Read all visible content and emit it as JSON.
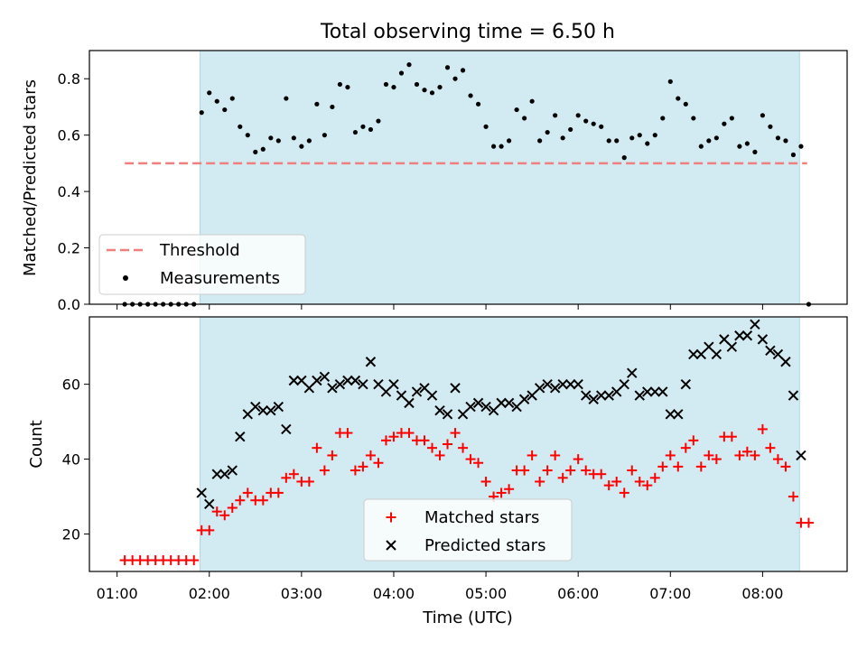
{
  "title": "Total observing time = 6.50 h",
  "colors": {
    "observing_window": "#add8e6",
    "threshold": "#f08080",
    "measurements": "#000000",
    "matched": "#ff0000",
    "predicted": "#000000"
  },
  "chart_data": [
    {
      "type": "scatter",
      "panel": "top",
      "ylabel": "Matched/Predicted stars",
      "ylim": [
        0,
        0.9
      ],
      "yticks": [
        "0.0",
        "0.2",
        "0.4",
        "0.6",
        "0.8"
      ],
      "xlim": [
        "00:42",
        "08:55"
      ],
      "xticks": [
        "01:00",
        "02:00",
        "03:00",
        "04:00",
        "05:00",
        "06:00",
        "07:00",
        "08:00"
      ],
      "legend_position": "lower-left",
      "observing_window": [
        "01:54",
        "08:24"
      ],
      "threshold": {
        "name": "Threshold",
        "y": 0.5,
        "x": [
          "01:05",
          "08:29"
        ]
      },
      "series": [
        {
          "name": "Measurements",
          "points": [
            [
              "01:05",
              0
            ],
            [
              "01:10",
              0
            ],
            [
              "01:15",
              0
            ],
            [
              "01:20",
              0
            ],
            [
              "01:25",
              0
            ],
            [
              "01:30",
              0
            ],
            [
              "01:35",
              0
            ],
            [
              "01:40",
              0
            ],
            [
              "01:45",
              0
            ],
            [
              "01:50",
              0
            ],
            [
              "01:55",
              0.68
            ],
            [
              "02:00",
              0.75
            ],
            [
              "02:05",
              0.72
            ],
            [
              "02:10",
              0.69
            ],
            [
              "02:15",
              0.73
            ],
            [
              "02:20",
              0.63
            ],
            [
              "02:25",
              0.6
            ],
            [
              "02:30",
              0.54
            ],
            [
              "02:35",
              0.55
            ],
            [
              "02:40",
              0.59
            ],
            [
              "02:45",
              0.58
            ],
            [
              "02:50",
              0.73
            ],
            [
              "02:55",
              0.59
            ],
            [
              "03:00",
              0.56
            ],
            [
              "03:05",
              0.58
            ],
            [
              "03:10",
              0.71
            ],
            [
              "03:15",
              0.6
            ],
            [
              "03:20",
              0.7
            ],
            [
              "03:25",
              0.78
            ],
            [
              "03:30",
              0.77
            ],
            [
              "03:35",
              0.61
            ],
            [
              "03:40",
              0.63
            ],
            [
              "03:45",
              0.62
            ],
            [
              "03:50",
              0.65
            ],
            [
              "03:55",
              0.78
            ],
            [
              "04:00",
              0.77
            ],
            [
              "04:05",
              0.82
            ],
            [
              "04:10",
              0.85
            ],
            [
              "04:15",
              0.78
            ],
            [
              "04:20",
              0.76
            ],
            [
              "04:25",
              0.75
            ],
            [
              "04:30",
              0.77
            ],
            [
              "04:35",
              0.84
            ],
            [
              "04:40",
              0.8
            ],
            [
              "04:45",
              0.83
            ],
            [
              "04:50",
              0.74
            ],
            [
              "04:55",
              0.71
            ],
            [
              "05:00",
              0.63
            ],
            [
              "05:05",
              0.56
            ],
            [
              "05:10",
              0.56
            ],
            [
              "05:15",
              0.58
            ],
            [
              "05:20",
              0.69
            ],
            [
              "05:25",
              0.66
            ],
            [
              "05:30",
              0.72
            ],
            [
              "05:35",
              0.58
            ],
            [
              "05:40",
              0.61
            ],
            [
              "05:45",
              0.67
            ],
            [
              "05:50",
              0.59
            ],
            [
              "05:55",
              0.62
            ],
            [
              "06:00",
              0.67
            ],
            [
              "06:05",
              0.65
            ],
            [
              "06:10",
              0.64
            ],
            [
              "06:15",
              0.63
            ],
            [
              "06:20",
              0.58
            ],
            [
              "06:25",
              0.58
            ],
            [
              "06:30",
              0.52
            ],
            [
              "06:35",
              0.59
            ],
            [
              "06:40",
              0.6
            ],
            [
              "06:45",
              0.57
            ],
            [
              "06:50",
              0.6
            ],
            [
              "06:55",
              0.66
            ],
            [
              "07:00",
              0.79
            ],
            [
              "07:05",
              0.73
            ],
            [
              "07:10",
              0.71
            ],
            [
              "07:15",
              0.66
            ],
            [
              "07:20",
              0.56
            ],
            [
              "07:25",
              0.58
            ],
            [
              "07:30",
              0.59
            ],
            [
              "07:35",
              0.64
            ],
            [
              "07:40",
              0.66
            ],
            [
              "07:45",
              0.56
            ],
            [
              "07:50",
              0.57
            ],
            [
              "07:55",
              0.54
            ],
            [
              "08:00",
              0.67
            ],
            [
              "08:05",
              0.63
            ],
            [
              "08:10",
              0.59
            ],
            [
              "08:15",
              0.58
            ],
            [
              "08:20",
              0.53
            ],
            [
              "08:25",
              0.56
            ],
            [
              "08:30",
              0
            ]
          ]
        }
      ]
    },
    {
      "type": "scatter",
      "panel": "bottom",
      "xlabel": "Time (UTC)",
      "ylabel": "Count",
      "ylim": [
        10,
        78
      ],
      "yticks": [
        "20",
        "40",
        "60"
      ],
      "xlim": [
        "00:42",
        "08:55"
      ],
      "xticks": [
        "01:00",
        "02:00",
        "03:00",
        "04:00",
        "05:00",
        "06:00",
        "07:00",
        "08:00"
      ],
      "legend_position": "lower-center",
      "observing_window": [
        "01:54",
        "08:24"
      ],
      "series": [
        {
          "name": "Matched stars",
          "points": [
            [
              "01:05",
              13
            ],
            [
              "01:10",
              13
            ],
            [
              "01:15",
              13
            ],
            [
              "01:20",
              13
            ],
            [
              "01:25",
              13
            ],
            [
              "01:30",
              13
            ],
            [
              "01:35",
              13
            ],
            [
              "01:40",
              13
            ],
            [
              "01:45",
              13
            ],
            [
              "01:50",
              13
            ],
            [
              "01:55",
              21
            ],
            [
              "02:00",
              21
            ],
            [
              "02:05",
              26
            ],
            [
              "02:10",
              25
            ],
            [
              "02:15",
              27
            ],
            [
              "02:20",
              29
            ],
            [
              "02:25",
              31
            ],
            [
              "02:30",
              29
            ],
            [
              "02:35",
              29
            ],
            [
              "02:40",
              31
            ],
            [
              "02:45",
              31
            ],
            [
              "02:50",
              35
            ],
            [
              "02:55",
              36
            ],
            [
              "03:00",
              34
            ],
            [
              "03:05",
              34
            ],
            [
              "03:10",
              43
            ],
            [
              "03:15",
              37
            ],
            [
              "03:20",
              41
            ],
            [
              "03:25",
              47
            ],
            [
              "03:30",
              47
            ],
            [
              "03:35",
              37
            ],
            [
              "03:40",
              38
            ],
            [
              "03:45",
              41
            ],
            [
              "03:50",
              39
            ],
            [
              "03:55",
              45
            ],
            [
              "04:00",
              46
            ],
            [
              "04:05",
              47
            ],
            [
              "04:10",
              47
            ],
            [
              "04:15",
              45
            ],
            [
              "04:20",
              45
            ],
            [
              "04:25",
              43
            ],
            [
              "04:30",
              41
            ],
            [
              "04:35",
              44
            ],
            [
              "04:40",
              47
            ],
            [
              "04:45",
              43
            ],
            [
              "04:50",
              40
            ],
            [
              "04:55",
              39
            ],
            [
              "05:00",
              34
            ],
            [
              "05:05",
              30
            ],
            [
              "05:10",
              31
            ],
            [
              "05:15",
              32
            ],
            [
              "05:20",
              37
            ],
            [
              "05:25",
              37
            ],
            [
              "05:30",
              41
            ],
            [
              "05:35",
              34
            ],
            [
              "05:40",
              37
            ],
            [
              "05:45",
              41
            ],
            [
              "05:50",
              35
            ],
            [
              "05:55",
              37
            ],
            [
              "06:00",
              40
            ],
            [
              "06:05",
              37
            ],
            [
              "06:10",
              36
            ],
            [
              "06:15",
              36
            ],
            [
              "06:20",
              33
            ],
            [
              "06:25",
              34
            ],
            [
              "06:30",
              31
            ],
            [
              "06:35",
              37
            ],
            [
              "06:40",
              34
            ],
            [
              "06:45",
              33
            ],
            [
              "06:50",
              35
            ],
            [
              "06:55",
              38
            ],
            [
              "07:00",
              41
            ],
            [
              "07:05",
              38
            ],
            [
              "07:10",
              43
            ],
            [
              "07:15",
              45
            ],
            [
              "07:20",
              38
            ],
            [
              "07:25",
              41
            ],
            [
              "07:30",
              40
            ],
            [
              "07:35",
              46
            ],
            [
              "07:40",
              46
            ],
            [
              "07:45",
              41
            ],
            [
              "07:50",
              42
            ],
            [
              "07:55",
              41
            ],
            [
              "08:00",
              48
            ],
            [
              "08:05",
              43
            ],
            [
              "08:10",
              40
            ],
            [
              "08:15",
              38
            ],
            [
              "08:20",
              30
            ],
            [
              "08:25",
              23
            ],
            [
              "08:30",
              23
            ]
          ]
        },
        {
          "name": "Predicted stars",
          "points": [
            [
              "01:55",
              31
            ],
            [
              "02:00",
              28
            ],
            [
              "02:05",
              36
            ],
            [
              "02:10",
              36
            ],
            [
              "02:15",
              37
            ],
            [
              "02:20",
              46
            ],
            [
              "02:25",
              52
            ],
            [
              "02:30",
              54
            ],
            [
              "02:35",
              53
            ],
            [
              "02:40",
              53
            ],
            [
              "02:45",
              54
            ],
            [
              "02:50",
              48
            ],
            [
              "02:55",
              61
            ],
            [
              "03:00",
              61
            ],
            [
              "03:05",
              59
            ],
            [
              "03:10",
              61
            ],
            [
              "03:15",
              62
            ],
            [
              "03:20",
              59
            ],
            [
              "03:25",
              60
            ],
            [
              "03:30",
              61
            ],
            [
              "03:35",
              61
            ],
            [
              "03:40",
              60
            ],
            [
              "03:45",
              66
            ],
            [
              "03:50",
              60
            ],
            [
              "03:55",
              58
            ],
            [
              "04:00",
              60
            ],
            [
              "04:05",
              57
            ],
            [
              "04:10",
              55
            ],
            [
              "04:15",
              58
            ],
            [
              "04:20",
              59
            ],
            [
              "04:25",
              57
            ],
            [
              "04:30",
              53
            ],
            [
              "04:35",
              52
            ],
            [
              "04:40",
              59
            ],
            [
              "04:45",
              52
            ],
            [
              "04:50",
              54
            ],
            [
              "04:55",
              55
            ],
            [
              "05:00",
              54
            ],
            [
              "05:05",
              53
            ],
            [
              "05:10",
              55
            ],
            [
              "05:15",
              55
            ],
            [
              "05:20",
              54
            ],
            [
              "05:25",
              56
            ],
            [
              "05:30",
              57
            ],
            [
              "05:35",
              59
            ],
            [
              "05:40",
              60
            ],
            [
              "05:45",
              59
            ],
            [
              "05:50",
              60
            ],
            [
              "05:55",
              60
            ],
            [
              "06:00",
              60
            ],
            [
              "06:05",
              57
            ],
            [
              "06:10",
              56
            ],
            [
              "06:15",
              57
            ],
            [
              "06:20",
              57
            ],
            [
              "06:25",
              58
            ],
            [
              "06:30",
              60
            ],
            [
              "06:35",
              63
            ],
            [
              "06:40",
              57
            ],
            [
              "06:45",
              58
            ],
            [
              "06:50",
              58
            ],
            [
              "06:55",
              58
            ],
            [
              "07:00",
              52
            ],
            [
              "07:05",
              52
            ],
            [
              "07:10",
              60
            ],
            [
              "07:15",
              68
            ],
            [
              "07:20",
              68
            ],
            [
              "07:25",
              70
            ],
            [
              "07:30",
              68
            ],
            [
              "07:35",
              72
            ],
            [
              "07:40",
              70
            ],
            [
              "07:45",
              73
            ],
            [
              "07:50",
              73
            ],
            [
              "07:55",
              76
            ],
            [
              "08:00",
              72
            ],
            [
              "08:05",
              69
            ],
            [
              "08:10",
              68
            ],
            [
              "08:15",
              66
            ],
            [
              "08:20",
              57
            ],
            [
              "08:25",
              41
            ]
          ]
        }
      ]
    }
  ]
}
